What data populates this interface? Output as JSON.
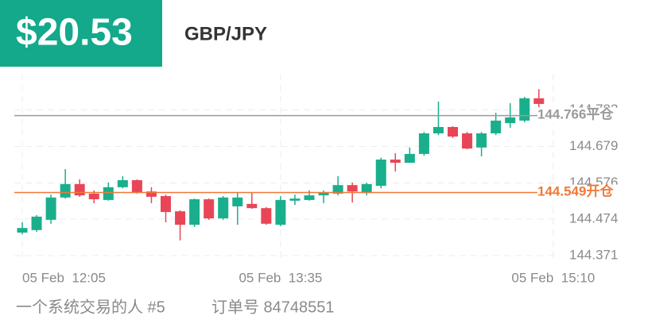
{
  "header": {
    "profit": "$20.53",
    "symbol": "GBP/JPY"
  },
  "chart_data": {
    "type": "candlestick",
    "categories": [
      "05 Feb  12:05",
      null,
      null,
      null,
      null,
      null,
      null,
      null,
      null,
      null,
      null,
      null,
      null,
      null,
      null,
      null,
      null,
      null,
      "05 Feb  13:35",
      null,
      null,
      null,
      null,
      null,
      null,
      null,
      null,
      null,
      null,
      null,
      null,
      null,
      null,
      null,
      null,
      null,
      null,
      "05 Feb  15:10"
    ],
    "open": [
      144.436,
      144.443,
      144.472,
      144.535,
      144.573,
      144.546,
      144.528,
      144.564,
      144.584,
      144.552,
      144.539,
      144.496,
      144.458,
      144.53,
      144.476,
      144.51,
      144.517,
      144.505,
      144.458,
      144.526,
      144.528,
      144.541,
      144.546,
      144.57,
      144.548,
      144.568,
      144.642,
      144.633,
      144.658,
      144.716,
      144.734,
      144.716,
      144.676,
      144.716,
      144.745,
      144.752,
      144.815,
      null
    ],
    "high": [
      144.465,
      144.485,
      144.543,
      144.615,
      144.586,
      144.555,
      144.577,
      144.595,
      144.586,
      144.564,
      144.543,
      144.499,
      144.532,
      144.532,
      144.539,
      144.548,
      144.548,
      144.508,
      144.539,
      144.543,
      144.555,
      144.555,
      144.595,
      144.577,
      144.577,
      144.647,
      144.66,
      144.676,
      144.72,
      144.806,
      144.736,
      144.72,
      144.72,
      144.774,
      144.801,
      144.819,
      144.841,
      null
    ],
    "low": [
      144.431,
      144.438,
      144.461,
      144.532,
      144.537,
      144.519,
      144.526,
      144.561,
      144.546,
      144.519,
      144.465,
      144.414,
      144.452,
      144.472,
      144.472,
      144.458,
      144.503,
      144.458,
      144.454,
      144.514,
      144.526,
      144.519,
      144.541,
      144.521,
      144.541,
      144.561,
      144.608,
      144.633,
      144.653,
      144.711,
      144.703,
      144.671,
      144.651,
      144.711,
      144.732,
      144.747,
      144.79,
      null
    ],
    "close": [
      144.449,
      144.481,
      144.535,
      144.573,
      144.541,
      144.53,
      144.564,
      144.584,
      144.548,
      144.537,
      144.494,
      144.458,
      144.53,
      144.476,
      144.535,
      144.535,
      144.505,
      144.461,
      144.528,
      144.532,
      144.541,
      144.55,
      144.57,
      144.552,
      144.573,
      144.642,
      144.633,
      144.658,
      144.716,
      144.734,
      144.707,
      144.673,
      144.716,
      144.752,
      144.761,
      144.815,
      144.799,
      null
    ],
    "up_color": "#1aaf8c",
    "down_color": "#e84657",
    "ylim": [
      144.371,
      144.884
    ],
    "yticks": [
      144.371,
      144.474,
      144.576,
      144.679,
      144.782
    ],
    "grid": true,
    "lines": [
      {
        "value": 144.766,
        "label": "平仓",
        "color": "#9a9a9a"
      },
      {
        "value": 144.549,
        "label": "开仓",
        "color": "#f07838"
      }
    ]
  },
  "footer": {
    "trader": "一个系统交易的人 #5",
    "order": "订单号 84748551"
  }
}
